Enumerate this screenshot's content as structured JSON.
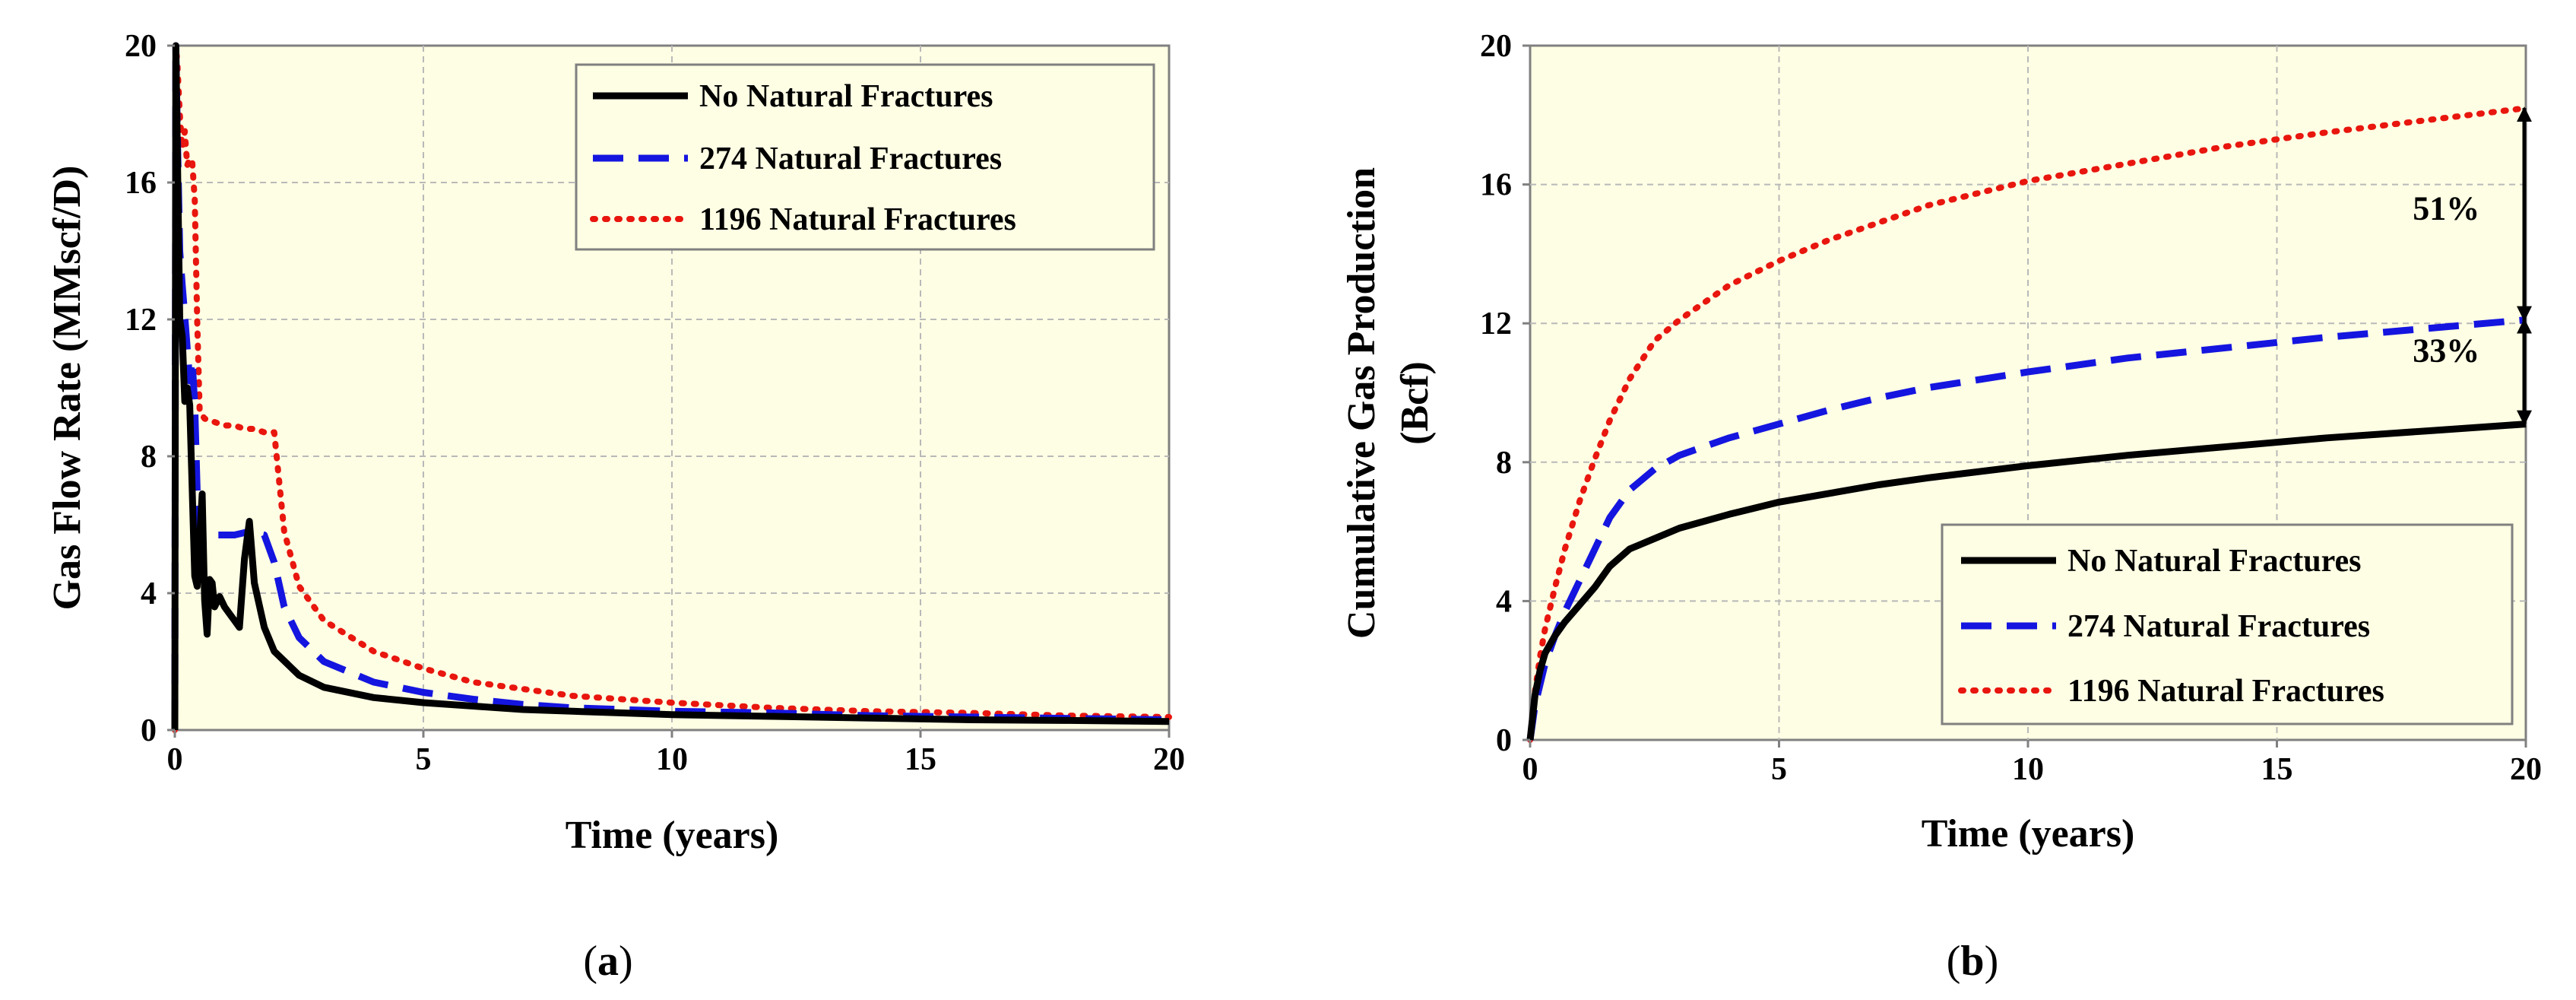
{
  "colors": {
    "plot_bg": "#FEFEE4",
    "no_fractures": "#000000",
    "fractures_274": "#1515E0",
    "fractures_1196": "#E8160E",
    "grid": "#B9B9B9"
  },
  "chart_data": [
    {
      "id": "a",
      "type": "line",
      "caption_open": "(",
      "caption_letter": "a",
      "caption_close": ")",
      "xlabel": "Time (years)",
      "ylabel": "Gas Flow Rate (MMscf/D)",
      "xlim": [
        0,
        20
      ],
      "ylim": [
        0,
        20
      ],
      "xticks": [
        0,
        5,
        10,
        15,
        20
      ],
      "yticks": [
        0,
        4,
        8,
        12,
        16,
        20
      ],
      "xtick_labels": [
        "0",
        "5",
        "10",
        "15",
        "20"
      ],
      "ytick_labels": [
        "0",
        "4",
        "8",
        "12",
        "16",
        "20"
      ],
      "grid": true,
      "legend_position": "top-right",
      "series": [
        {
          "name": "No Natural Fractures",
          "style": "solid",
          "color": "#000000",
          "x": [
            0,
            0.02,
            0.05,
            0.1,
            0.15,
            0.2,
            0.25,
            0.3,
            0.35,
            0.4,
            0.45,
            0.5,
            0.55,
            0.6,
            0.65,
            0.7,
            0.75,
            0.8,
            0.9,
            1.0,
            1.1,
            1.2,
            1.3,
            1.4,
            1.5,
            1.6,
            1.8,
            2.0,
            2.5,
            3,
            4,
            5,
            6,
            7,
            8,
            9,
            10,
            12,
            14,
            16,
            18,
            20
          ],
          "y": [
            0,
            20,
            17,
            12,
            11.5,
            9.6,
            10,
            9.5,
            7,
            4.5,
            4.2,
            5.6,
            6.9,
            3.8,
            2.8,
            4.4,
            4.3,
            3.6,
            3.9,
            3.6,
            3.4,
            3.2,
            3.0,
            5.0,
            6.1,
            4.3,
            3.0,
            2.3,
            1.6,
            1.25,
            0.95,
            0.8,
            0.7,
            0.6,
            0.55,
            0.5,
            0.45,
            0.4,
            0.35,
            0.3,
            0.28,
            0.25
          ]
        },
        {
          "name": "274 Natural Fractures",
          "style": "dashed",
          "color": "#1515E0",
          "x": [
            0,
            0.02,
            0.05,
            0.1,
            0.15,
            0.2,
            0.3,
            0.35,
            0.4,
            0.45,
            0.5,
            0.6,
            0.8,
            1.0,
            1.2,
            1.5,
            1.8,
            2.0,
            2.2,
            2.5,
            3,
            4,
            5,
            6,
            7,
            8,
            9,
            10,
            12,
            14,
            16,
            18,
            20
          ],
          "y": [
            0,
            20,
            17.5,
            14,
            13,
            12.1,
            10.2,
            10.8,
            9.5,
            7.0,
            5.8,
            5.7,
            5.7,
            5.7,
            5.7,
            5.8,
            5.7,
            4.9,
            3.6,
            2.7,
            2.0,
            1.4,
            1.1,
            0.9,
            0.75,
            0.65,
            0.6,
            0.55,
            0.5,
            0.42,
            0.38,
            0.34,
            0.3
          ]
        },
        {
          "name": "1196 Natural Fractures",
          "style": "dotted",
          "color": "#E8160E",
          "x": [
            0,
            0.02,
            0.05,
            0.1,
            0.15,
            0.2,
            0.25,
            0.3,
            0.35,
            0.4,
            0.45,
            0.5,
            0.6,
            0.8,
            1.0,
            1.2,
            1.4,
            1.6,
            1.8,
            2.0,
            2.2,
            2.5,
            3,
            4,
            5,
            6,
            7,
            8,
            9,
            10,
            12,
            14,
            16,
            18,
            20
          ],
          "y": [
            0,
            20,
            19.5,
            18,
            17,
            17.5,
            16.5,
            16.7,
            16.6,
            15.5,
            12,
            9.3,
            9.1,
            9.0,
            8.9,
            8.9,
            8.8,
            8.8,
            8.7,
            8.7,
            5.8,
            4.2,
            3.2,
            2.3,
            1.8,
            1.4,
            1.2,
            1.0,
            0.9,
            0.8,
            0.65,
            0.55,
            0.5,
            0.42,
            0.38
          ]
        }
      ]
    },
    {
      "id": "b",
      "type": "line",
      "caption_open": "(",
      "caption_letter": "b",
      "caption_close": ")",
      "xlabel": "Time (years)",
      "ylabel_line1": "Cumulative Gas Production",
      "ylabel_line2": "(Bcf)",
      "xlim": [
        0,
        20
      ],
      "ylim": [
        0,
        20
      ],
      "xticks": [
        0,
        5,
        10,
        15,
        20
      ],
      "yticks": [
        0,
        4,
        8,
        12,
        16,
        20
      ],
      "xtick_labels": [
        "0",
        "5",
        "10",
        "15",
        "20"
      ],
      "ytick_labels": [
        "0",
        "4",
        "8",
        "12",
        "16",
        "20"
      ],
      "grid": true,
      "legend_position": "bottom-right",
      "annotations": [
        {
          "text": "51%",
          "x": 18.4,
          "y": 15.0
        },
        {
          "text": "33%",
          "x": 18.4,
          "y": 10.9
        }
      ],
      "arrows": [
        {
          "x": 20,
          "y_from": 12.1,
          "y_to": 18.2
        },
        {
          "x": 20,
          "y_from": 9.1,
          "y_to": 12.1
        }
      ],
      "series": [
        {
          "name": "No Natural Fractures",
          "style": "solid",
          "color": "#000000",
          "x": [
            0,
            0.1,
            0.2,
            0.3,
            0.5,
            0.7,
            1.0,
            1.3,
            1.6,
            2.0,
            2.5,
            3,
            4,
            5,
            6,
            7,
            8,
            10,
            12,
            14,
            16,
            18,
            20
          ],
          "y": [
            0,
            1.3,
            2.0,
            2.5,
            3.0,
            3.4,
            3.9,
            4.4,
            5.0,
            5.5,
            5.8,
            6.1,
            6.5,
            6.85,
            7.1,
            7.35,
            7.55,
            7.9,
            8.2,
            8.45,
            8.7,
            8.9,
            9.1
          ]
        },
        {
          "name": "274 Natural Fractures",
          "style": "dashed",
          "color": "#1515E0",
          "x": [
            0,
            0.1,
            0.2,
            0.3,
            0.5,
            0.7,
            1.0,
            1.3,
            1.6,
            2.0,
            2.5,
            3,
            4,
            5,
            6,
            7,
            8,
            10,
            12,
            14,
            16,
            18,
            20
          ],
          "y": [
            0,
            1.0,
            1.6,
            2.2,
            3.0,
            3.7,
            4.6,
            5.5,
            6.4,
            7.2,
            7.8,
            8.2,
            8.7,
            9.1,
            9.5,
            9.85,
            10.15,
            10.6,
            11.0,
            11.3,
            11.6,
            11.85,
            12.1
          ]
        },
        {
          "name": "1196 Natural Fractures",
          "style": "dotted",
          "color": "#E8160E",
          "x": [
            0,
            0.1,
            0.2,
            0.3,
            0.5,
            0.7,
            1.0,
            1.3,
            1.6,
            2.0,
            2.5,
            3,
            4,
            5,
            6,
            7,
            8,
            10,
            12,
            14,
            16,
            18,
            20
          ],
          "y": [
            0,
            1.4,
            2.4,
            3.2,
            4.4,
            5.5,
            6.9,
            8.1,
            9.2,
            10.4,
            11.5,
            12.1,
            13.1,
            13.8,
            14.4,
            14.9,
            15.4,
            16.1,
            16.6,
            17.1,
            17.5,
            17.85,
            18.2
          ]
        }
      ]
    }
  ]
}
